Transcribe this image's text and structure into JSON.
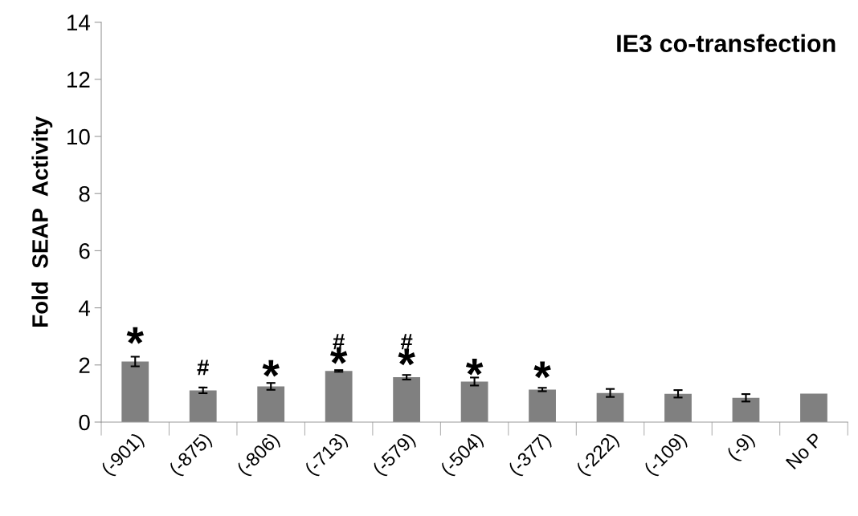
{
  "chart_data": {
    "type": "bar",
    "title": "IE3 co-transfection",
    "ylabel": "Fold  SEAP  Activity",
    "categories": [
      "(-901)",
      "(-875)",
      "(-806)",
      "(-713)",
      "(-579)",
      "(-504)",
      "(-377)",
      "(-222)",
      "(-109)",
      "(-9)",
      "No P"
    ],
    "values": [
      2.12,
      1.11,
      1.25,
      1.79,
      1.57,
      1.42,
      1.14,
      1.02,
      0.99,
      0.85,
      1.0
    ],
    "errors": [
      0.17,
      0.1,
      0.12,
      0.03,
      0.08,
      0.14,
      0.06,
      0.14,
      0.13,
      0.13,
      null
    ],
    "color": "#808080",
    "ylim": [
      0,
      14
    ],
    "yticks": [
      0,
      2,
      4,
      6,
      8,
      10,
      12,
      14
    ],
    "grid": false,
    "legend": false,
    "annotations": [
      "*",
      "#",
      "*",
      "*",
      "#",
      "*",
      "#",
      "*",
      "*"
    ]
  }
}
